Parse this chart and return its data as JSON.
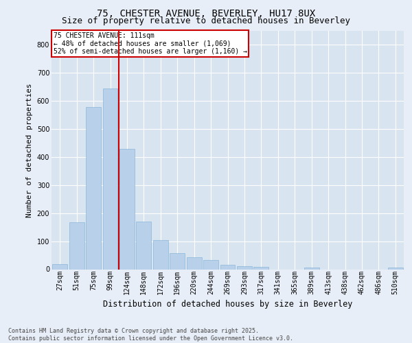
{
  "title1": "75, CHESTER AVENUE, BEVERLEY, HU17 8UX",
  "title2": "Size of property relative to detached houses in Beverley",
  "xlabel": "Distribution of detached houses by size in Beverley",
  "ylabel": "Number of detached properties",
  "footer": "Contains HM Land Registry data © Crown copyright and database right 2025.\nContains public sector information licensed under the Open Government Licence v3.0.",
  "categories": [
    "27sqm",
    "51sqm",
    "75sqm",
    "99sqm",
    "124sqm",
    "148sqm",
    "172sqm",
    "196sqm",
    "220sqm",
    "244sqm",
    "269sqm",
    "293sqm",
    "317sqm",
    "341sqm",
    "365sqm",
    "389sqm",
    "413sqm",
    "438sqm",
    "462sqm",
    "486sqm",
    "510sqm"
  ],
  "values": [
    18,
    168,
    578,
    645,
    430,
    170,
    105,
    57,
    42,
    32,
    15,
    10,
    8,
    0,
    0,
    7,
    0,
    0,
    0,
    0,
    5
  ],
  "bar_color": "#b8d0ea",
  "bar_edgecolor": "#7aafd4",
  "vline_x_index": 3.5,
  "vline_color": "#cc0000",
  "annotation_title": "75 CHESTER AVENUE: 111sqm",
  "annotation_line1": "← 48% of detached houses are smaller (1,069)",
  "annotation_line2": "52% of semi-detached houses are larger (1,160) →",
  "annotation_box_color": "#cc0000",
  "ylim": [
    0,
    850
  ],
  "yticks": [
    0,
    100,
    200,
    300,
    400,
    500,
    600,
    700,
    800
  ],
  "bg_color": "#e8eef8",
  "plot_bg_color": "#d8e4f0",
  "grid_color": "#ffffff",
  "title1_fontsize": 10,
  "title2_fontsize": 9,
  "ylabel_fontsize": 8,
  "xlabel_fontsize": 8.5,
  "tick_fontsize": 7,
  "annot_fontsize": 7,
  "footer_fontsize": 6
}
